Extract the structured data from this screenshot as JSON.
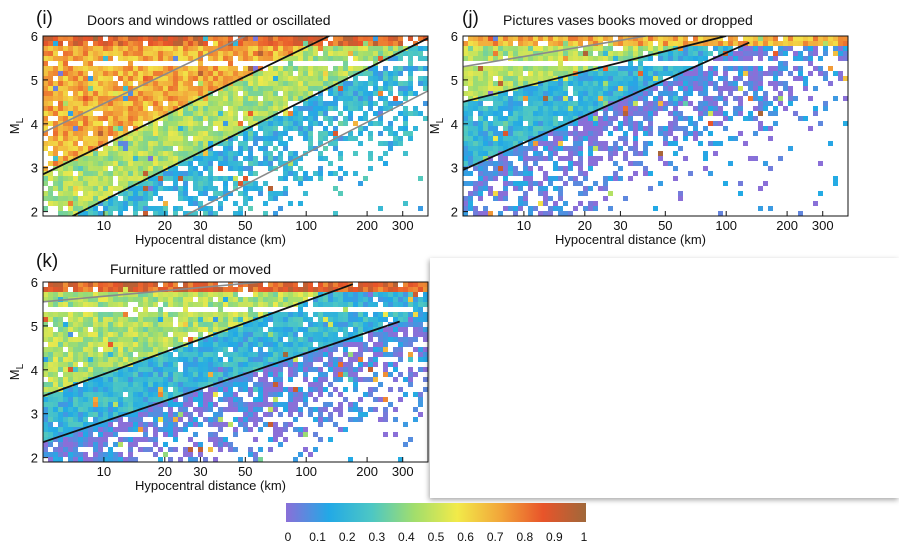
{
  "colors": {
    "scale": [
      "#8a6fd8",
      "#22a9e6",
      "#4dc7c4",
      "#a2de6c",
      "#f2ea49",
      "#f2a63a",
      "#e8542a",
      "#a0683a"
    ],
    "line_black": "#111111",
    "line_gray": "#8a8a8a"
  },
  "colorbar": {
    "ticks": [
      "0",
      "0.1",
      "0.2",
      "0.3",
      "0.4",
      "0.5",
      "0.6",
      "0.7",
      "0.8",
      "0.9",
      "1"
    ]
  },
  "chart_data": [
    {
      "type": "heatmap",
      "panel": "(i)",
      "title": "Doors and windows rattled or oscillated",
      "xlabel": "Hypocentral distance (km)",
      "ylabel": "M_L",
      "x_scale": "log",
      "xlim": [
        5,
        400
      ],
      "ylim": [
        1.9,
        6.0
      ],
      "x_ticks": [
        10,
        20,
        30,
        50,
        100,
        200,
        300
      ],
      "y_ticks": [
        2,
        3,
        4,
        5,
        6
      ],
      "colorbar_range": [
        0,
        1
      ],
      "curves": [
        {
          "style": "black",
          "points": [
            [
              5,
              2.85
            ],
            [
              130,
              6.0
            ]
          ]
        },
        {
          "style": "black",
          "points": [
            [
              7,
              1.9
            ],
            [
              400,
              5.95
            ]
          ]
        },
        {
          "style": "gray",
          "points": [
            [
              5,
              3.8
            ],
            [
              50,
              6.0
            ]
          ]
        },
        {
          "style": "gray",
          "points": [
            [
              25,
              1.9
            ],
            [
              400,
              4.75
            ]
          ]
        }
      ],
      "regions": [
        {
          "desc": "saturated band at M_L 5.8-6.0",
          "value": 0.85
        },
        {
          "desc": "near field above black line",
          "value": 0.7
        },
        {
          "desc": "transition band",
          "value": 0.45
        },
        {
          "desc": "far field below lower black line",
          "value": 0.2
        }
      ]
    },
    {
      "type": "heatmap",
      "panel": "(j)",
      "title": "Pictures vases books moved or dropped",
      "xlabel": "Hypocentral distance (km)",
      "ylabel": "M_L",
      "x_scale": "log",
      "xlim": [
        5,
        400
      ],
      "ylim": [
        1.9,
        6.0
      ],
      "x_ticks": [
        10,
        20,
        30,
        50,
        100,
        200,
        300
      ],
      "y_ticks": [
        2,
        3,
        4,
        5,
        6
      ],
      "colorbar_range": [
        0,
        1
      ],
      "curves": [
        {
          "style": "black",
          "points": [
            [
              5,
              4.5
            ],
            [
              100,
              6.0
            ]
          ]
        },
        {
          "style": "black",
          "points": [
            [
              5,
              2.95
            ],
            [
              130,
              5.85
            ]
          ]
        },
        {
          "style": "gray",
          "points": [
            [
              5,
              5.3
            ],
            [
              40,
              6.0
            ]
          ]
        }
      ],
      "regions": [
        {
          "desc": "saturated band at M_L 5.8-6.0",
          "value": 0.7
        },
        {
          "desc": "near field",
          "value": 0.45
        },
        {
          "desc": "middle band",
          "value": 0.2
        },
        {
          "desc": "far field",
          "value": 0.05
        }
      ]
    },
    {
      "type": "heatmap",
      "panel": "(k)",
      "title": "Furniture rattled or moved",
      "xlabel": "Hypocentral distance (km)",
      "ylabel": "M_L",
      "x_scale": "log",
      "xlim": [
        5,
        400
      ],
      "ylim": [
        1.9,
        6.0
      ],
      "x_ticks": [
        10,
        20,
        30,
        50,
        100,
        200,
        300
      ],
      "y_ticks": [
        2,
        3,
        4,
        5,
        6
      ],
      "colorbar_range": [
        0,
        1
      ],
      "curves": [
        {
          "style": "black",
          "points": [
            [
              5,
              3.4
            ],
            [
              170,
              5.95
            ]
          ]
        },
        {
          "style": "black",
          "points": [
            [
              5,
              2.35
            ],
            [
              290,
              5.1
            ]
          ]
        },
        {
          "style": "gray",
          "points": [
            [
              5,
              5.55
            ],
            [
              60,
              6.0
            ]
          ]
        }
      ],
      "regions": [
        {
          "desc": "saturated band at M_L 5.8-6.0",
          "value": 0.85
        },
        {
          "desc": "near field",
          "value": 0.45
        },
        {
          "desc": "middle band",
          "value": 0.2
        },
        {
          "desc": "far field",
          "value": 0.05
        }
      ]
    }
  ]
}
